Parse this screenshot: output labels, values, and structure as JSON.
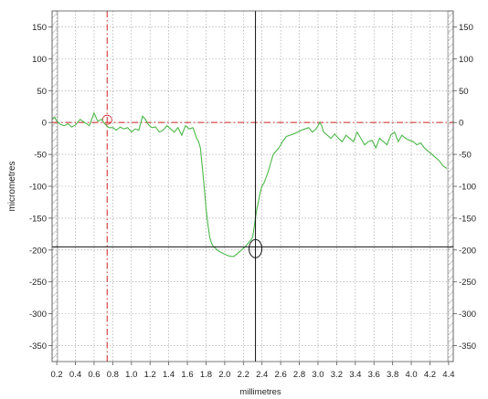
{
  "chart_data": {
    "type": "line",
    "xlabel": "millimetres",
    "ylabel": "micrometres",
    "xlim": [
      0.15,
      4.45
    ],
    "ylim": [
      -375,
      175
    ],
    "x_ticks": [
      0.2,
      0.4,
      0.6,
      0.8,
      1.0,
      1.2,
      1.4,
      1.6,
      1.8,
      2.0,
      2.2,
      2.4,
      2.6,
      2.8,
      3.0,
      3.2,
      3.4,
      3.6,
      3.8,
      4.0,
      4.2,
      4.4
    ],
    "x_tick_labels": [
      "0.2",
      "0.4",
      "0.6",
      "0.8",
      "1.0",
      "1.2",
      "1.4",
      "1.6",
      "1.8",
      "2.0",
      "2.2",
      "2.4",
      "2.6",
      "2.8",
      "3.0",
      "3.2",
      "3.4",
      "3.6",
      "3.8",
      "4.0",
      "4.2",
      "4.4"
    ],
    "y_ticks": [
      150,
      100,
      50,
      0,
      -50,
      -100,
      -150,
      -200,
      -250,
      -300,
      -350
    ],
    "y_tick_labels": [
      "150",
      "100",
      "50",
      "0",
      "-50",
      "-100",
      "-150",
      "-200",
      "-250",
      "-300",
      "-350"
    ],
    "grid": true,
    "colors": {
      "profile": "#4cb848",
      "grid": "#9a9a9a",
      "reference": "#cc2222",
      "cursor": "#111111",
      "hatch": "#9a9a9a"
    },
    "series": [
      {
        "x": [
          0.15,
          0.18,
          0.2,
          0.24,
          0.28,
          0.32,
          0.36,
          0.4,
          0.45,
          0.5,
          0.55,
          0.6,
          0.64,
          0.68,
          0.72,
          0.76,
          0.8,
          0.84,
          0.88,
          0.92,
          0.96,
          1.0,
          1.04,
          1.08,
          1.12,
          1.15,
          1.18,
          1.22,
          1.26,
          1.3,
          1.34,
          1.38,
          1.42,
          1.46,
          1.5,
          1.54,
          1.58,
          1.62,
          1.66,
          1.7,
          1.72,
          1.74,
          1.76,
          1.78,
          1.8,
          1.82,
          1.84,
          1.86,
          1.88,
          1.9,
          1.92,
          1.95,
          1.98,
          2.02,
          2.06,
          2.1,
          2.14,
          2.18,
          2.22,
          2.26,
          2.3,
          2.32,
          2.34,
          2.36,
          2.38,
          2.4,
          2.42,
          2.44,
          2.46,
          2.48,
          2.5,
          2.52,
          2.55,
          2.58,
          2.62,
          2.66,
          2.7,
          2.74,
          2.78,
          2.82,
          2.86,
          2.9,
          2.94,
          2.98,
          3.02,
          3.04,
          3.06,
          3.1,
          3.14,
          3.18,
          3.22,
          3.26,
          3.3,
          3.34,
          3.38,
          3.42,
          3.46,
          3.5,
          3.54,
          3.58,
          3.62,
          3.66,
          3.7,
          3.74,
          3.78,
          3.82,
          3.86,
          3.9,
          3.94,
          3.98,
          4.02,
          4.06,
          4.1,
          4.14,
          4.18,
          4.22,
          4.26,
          4.3,
          4.34,
          4.38
        ],
        "y": [
          5,
          8,
          2,
          -3,
          -5,
          -2,
          -7,
          -4,
          5,
          0,
          -5,
          15,
          2,
          5,
          -3,
          -8,
          -8,
          -12,
          -7,
          -10,
          -8,
          -15,
          -10,
          -12,
          10,
          5,
          -3,
          -8,
          -7,
          -15,
          -12,
          -5,
          -10,
          -15,
          -8,
          -20,
          -5,
          -10,
          -8,
          -25,
          -30,
          -40,
          -70,
          -100,
          -135,
          -160,
          -180,
          -190,
          -195,
          -197,
          -200,
          -203,
          -205,
          -208,
          -210,
          -210,
          -205,
          -200,
          -195,
          -188,
          -180,
          -160,
          -140,
          -125,
          -110,
          -100,
          -95,
          -88,
          -80,
          -70,
          -60,
          -50,
          -45,
          -40,
          -30,
          -22,
          -20,
          -18,
          -15,
          -12,
          -10,
          -8,
          -15,
          -10,
          0,
          -5,
          -15,
          -20,
          -25,
          -18,
          -25,
          -30,
          -20,
          -25,
          -30,
          -15,
          -25,
          -35,
          -30,
          -28,
          -40,
          -25,
          -30,
          -35,
          -20,
          -15,
          -30,
          -20,
          -25,
          -28,
          -30,
          -35,
          -32,
          -40,
          -45,
          -50,
          -55,
          -60,
          -68,
          -72
        ]
      }
    ],
    "reference_line_y": 0,
    "reference_line_x": 0.74,
    "cursor_x": 2.33,
    "cursor_y": -195
  }
}
